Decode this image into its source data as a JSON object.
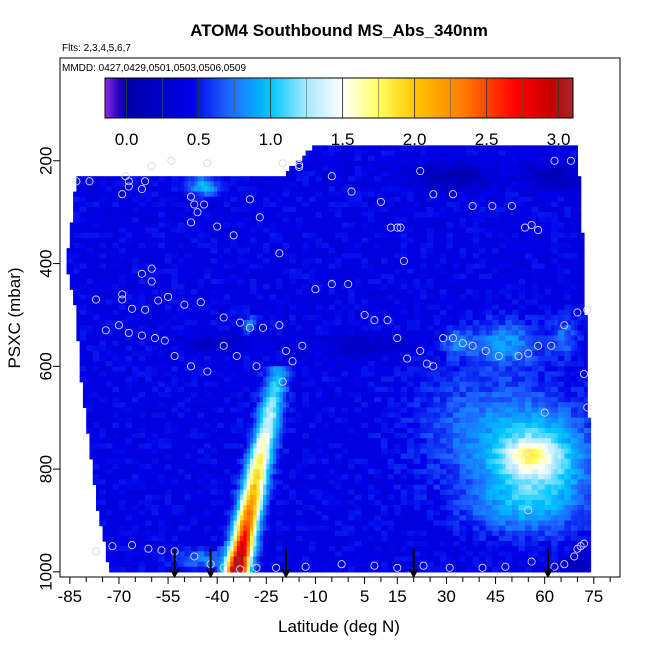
{
  "chart_data": {
    "type": "heatmap",
    "title": "ATOM4 Southbound MS_Abs_340nm",
    "annotations": {
      "flights": "Flts: 2,3,4,5,6,7",
      "dates": "MMDD: 0427,0429,0501,0503,0506,0509"
    },
    "xlabel": "Latitude (deg N)",
    "ylabel": "PSXC (mbar)",
    "xlim": [
      -88,
      83
    ],
    "ylim": [
      1010,
      0
    ],
    "x_ticks": [
      -85,
      -70,
      -55,
      -40,
      -25,
      -10,
      5,
      15,
      30,
      45,
      60,
      75
    ],
    "x_minor_ticks": [
      -80,
      -75,
      -65,
      -60,
      -50,
      -45,
      -35,
      -30,
      -20,
      -15,
      -5,
      0,
      10,
      20,
      25,
      35,
      40,
      50,
      55,
      65,
      70,
      80
    ],
    "x_tick_labels": [
      "-85",
      "-70",
      "-55",
      "-40",
      "-25",
      "-10",
      "5",
      "15",
      "30",
      "45",
      "60",
      "75"
    ],
    "y_ticks": [
      200,
      400,
      600,
      800,
      1000
    ],
    "y_tick_labels": [
      "200",
      "400",
      "600",
      "800",
      "1000"
    ],
    "colorbar": {
      "range": [
        -0.15,
        3.1
      ],
      "ticks": [
        0.0,
        0.5,
        1.0,
        1.5,
        2.0,
        2.5,
        3.0
      ],
      "tick_labels": [
        "0.0",
        "0.5",
        "1.0",
        "1.5",
        "2.0",
        "2.5",
        "3.0"
      ],
      "stops": [
        {
          "value": -0.15,
          "color": "#8a2be2"
        },
        {
          "value": -0.05,
          "color": "#1f00c0"
        },
        {
          "value": 0.0,
          "color": "#0000a8"
        },
        {
          "value": 0.45,
          "color": "#0000e8"
        },
        {
          "value": 0.7,
          "color": "#1e64ff"
        },
        {
          "value": 1.0,
          "color": "#00c8ff"
        },
        {
          "value": 1.25,
          "color": "#a8e8ff"
        },
        {
          "value": 1.5,
          "color": "#ffffff"
        },
        {
          "value": 1.75,
          "color": "#ffff60"
        },
        {
          "value": 2.0,
          "color": "#ffc800"
        },
        {
          "value": 2.35,
          "color": "#ff7800"
        },
        {
          "value": 2.7,
          "color": "#ff0000"
        },
        {
          "value": 2.95,
          "color": "#c80000"
        },
        {
          "value": 3.1,
          "color": "#a0282a"
        }
      ]
    },
    "field": {
      "base_value": 0.42,
      "coverage_top": [
        [
          -55,
          230
        ],
        [
          -20,
          230
        ],
        [
          -10,
          170
        ],
        [
          10,
          170
        ],
        [
          40,
          170
        ],
        [
          70,
          170
        ]
      ],
      "coverage_left": [
        [
          220,
          -83
        ],
        [
          300,
          -84
        ],
        [
          400,
          -86
        ],
        [
          500,
          -83
        ],
        [
          600,
          -82
        ],
        [
          700,
          -80
        ],
        [
          800,
          -78
        ],
        [
          900,
          -76
        ],
        [
          950,
          -74
        ],
        [
          1000,
          -73
        ]
      ],
      "coverage_right": [
        [
          170,
          70
        ],
        [
          400,
          72
        ],
        [
          600,
          73
        ],
        [
          800,
          74
        ],
        [
          1000,
          74
        ]
      ],
      "features": [
        {
          "lat": 58,
          "p": 790,
          "dlat": 16,
          "dp": 95,
          "value": 0.72
        },
        {
          "lat": 56,
          "p": 775,
          "dlat": 7,
          "dp": 30,
          "value": 0.55
        },
        {
          "lat": 42,
          "p": 720,
          "dlat": 22,
          "dp": 120,
          "value": 0.28
        },
        {
          "lat": 52,
          "p": 880,
          "dlat": 16,
          "dp": 50,
          "value": 0.25
        },
        {
          "lat": 48,
          "p": 555,
          "dlat": 10,
          "dp": 40,
          "value": 0.4
        },
        {
          "lat": 33,
          "p": 555,
          "dlat": 4,
          "dp": 25,
          "value": 0.3
        },
        {
          "lat": -44,
          "p": 250,
          "dlat": 4,
          "dp": 18,
          "value": 0.6
        },
        {
          "lat": -30,
          "p": 520,
          "dlat": 2,
          "dp": 15,
          "value": 0.4
        },
        {
          "lat": -44,
          "p": 975,
          "dlat": 9,
          "dp": 18,
          "value": 0.35
        },
        {
          "lat": 66,
          "p": 540,
          "dlat": 4,
          "dp": 40,
          "value": 0.3
        },
        {
          "lat": 32,
          "p": 230,
          "dlat": 12,
          "dp": 25,
          "value": -0.35
        },
        {
          "lat": 63,
          "p": 230,
          "dlat": 8,
          "dp": 25,
          "value": -0.3
        },
        {
          "lat": 5,
          "p": 560,
          "dlat": 15,
          "dp": 20,
          "value": -0.2
        },
        {
          "lat": -40,
          "p": 555,
          "dlat": 10,
          "dp": 15,
          "value": -0.25
        },
        {
          "lat": 70,
          "p": 985,
          "dlat": 4,
          "dp": 20,
          "value": -0.35
        },
        {
          "lat": -40,
          "p": 190,
          "dlat": 6,
          "dp": 20,
          "value": -0.25
        }
      ],
      "plume": {
        "p_start": 1000,
        "p_end": 600,
        "lat_at_start": -34,
        "lat_at_end": -21,
        "peak_start": 3.0,
        "peak_end": 0.45,
        "width": 3.5
      }
    },
    "sample_points": [
      [
        -83,
        240
      ],
      [
        -79,
        240
      ],
      [
        -68,
        230
      ],
      [
        -67,
        240
      ],
      [
        -67,
        250
      ],
      [
        -62,
        240
      ],
      [
        -60,
        210
      ],
      [
        -54,
        200
      ],
      [
        -43,
        205
      ],
      [
        -69,
        265
      ],
      [
        -63,
        255
      ],
      [
        -48,
        270
      ],
      [
        -47,
        285
      ],
      [
        -44,
        285
      ],
      [
        -30,
        275
      ],
      [
        -20,
        205
      ],
      [
        -15,
        208
      ],
      [
        -15,
        212
      ],
      [
        -5,
        230
      ],
      [
        1,
        260
      ],
      [
        10,
        280
      ],
      [
        13,
        330
      ],
      [
        15,
        330
      ],
      [
        16,
        330
      ],
      [
        17,
        395
      ],
      [
        22,
        220
      ],
      [
        26,
        265
      ],
      [
        32,
        265
      ],
      [
        38,
        288
      ],
      [
        44,
        288
      ],
      [
        50,
        288
      ],
      [
        54,
        330
      ],
      [
        56,
        325
      ],
      [
        58,
        335
      ],
      [
        63,
        200
      ],
      [
        68,
        200
      ],
      [
        -48,
        320
      ],
      [
        -46,
        300
      ],
      [
        -40,
        328
      ],
      [
        -35,
        345
      ],
      [
        -27,
        310
      ],
      [
        -21,
        380
      ],
      [
        -60,
        410
      ],
      [
        -63,
        420
      ],
      [
        -60,
        435
      ],
      [
        -55,
        465
      ],
      [
        -69,
        460
      ],
      [
        -69,
        470
      ],
      [
        -77,
        470
      ],
      [
        -66,
        488
      ],
      [
        -62,
        490
      ],
      [
        -58,
        472
      ],
      [
        -50,
        480
      ],
      [
        -45,
        475
      ],
      [
        -38,
        505
      ],
      [
        -33,
        515
      ],
      [
        -30,
        525
      ],
      [
        -26,
        525
      ],
      [
        -21,
        520
      ],
      [
        -19,
        570
      ],
      [
        -17,
        590
      ],
      [
        -14,
        560
      ],
      [
        -10,
        450
      ],
      [
        -5,
        440
      ],
      [
        0,
        440
      ],
      [
        5,
        500
      ],
      [
        8,
        510
      ],
      [
        12,
        510
      ],
      [
        15,
        545
      ],
      [
        18,
        585
      ],
      [
        22,
        570
      ],
      [
        24,
        595
      ],
      [
        26,
        600
      ],
      [
        29,
        545
      ],
      [
        32,
        545
      ],
      [
        35,
        555
      ],
      [
        38,
        560
      ],
      [
        42,
        570
      ],
      [
        46,
        580
      ],
      [
        52,
        580
      ],
      [
        55,
        575
      ],
      [
        58,
        560
      ],
      [
        62,
        560
      ],
      [
        66,
        520
      ],
      [
        70,
        495
      ],
      [
        73,
        490
      ],
      [
        -74,
        530
      ],
      [
        -70,
        520
      ],
      [
        -67,
        535
      ],
      [
        -63,
        540
      ],
      [
        -59,
        545
      ],
      [
        -56,
        550
      ],
      [
        -53,
        580
      ],
      [
        -48,
        600
      ],
      [
        -43,
        610
      ],
      [
        -38,
        560
      ],
      [
        -34,
        580
      ],
      [
        -28,
        600
      ],
      [
        -20,
        630
      ],
      [
        60,
        690
      ],
      [
        72,
        615
      ],
      [
        73,
        680
      ],
      [
        55,
        770
      ],
      [
        55,
        880
      ],
      [
        -77,
        960
      ],
      [
        -72,
        950
      ],
      [
        -66,
        948
      ],
      [
        -61,
        955
      ],
      [
        -57,
        958
      ],
      [
        -53,
        960
      ],
      [
        -47,
        970
      ],
      [
        -42,
        985
      ],
      [
        -38,
        992
      ],
      [
        -33,
        995
      ],
      [
        -28,
        992
      ],
      [
        -22,
        992
      ],
      [
        -13,
        990
      ],
      [
        -2,
        985
      ],
      [
        8,
        988
      ],
      [
        15,
        992
      ],
      [
        23,
        988
      ],
      [
        31,
        992
      ],
      [
        41,
        992
      ],
      [
        48,
        990
      ],
      [
        56,
        980
      ],
      [
        63,
        990
      ],
      [
        66,
        985
      ],
      [
        69,
        970
      ],
      [
        70,
        955
      ],
      [
        71,
        950
      ],
      [
        72,
        945
      ]
    ],
    "flight_markers_lat": [
      -53,
      -42,
      -19,
      20,
      61
    ]
  }
}
